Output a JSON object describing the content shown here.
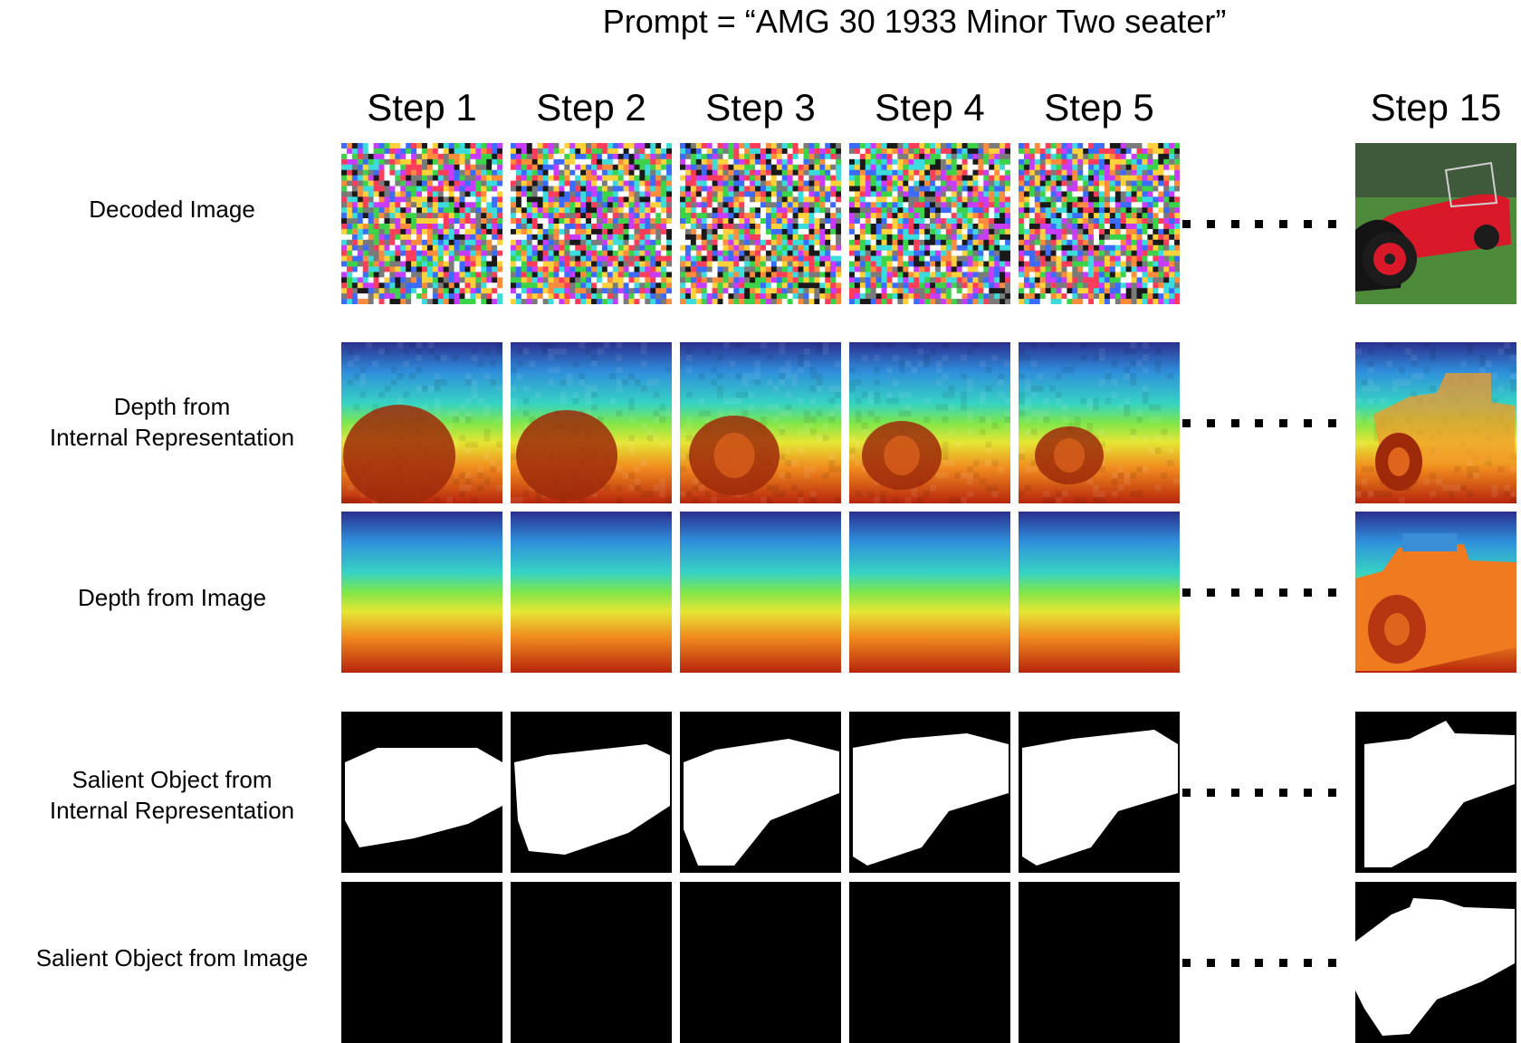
{
  "prompt": "Prompt = “AMG 30 1933 Minor Two seater”",
  "steps": [
    "Step 1",
    "Step 2",
    "Step 3",
    "Step 4",
    "Step 5",
    "Step 15"
  ],
  "rows": [
    {
      "label": [
        "Decoded Image"
      ]
    },
    {
      "label": [
        "Depth from",
        "Internal Representation"
      ]
    },
    {
      "label": [
        "Depth from Image"
      ]
    },
    {
      "label": [
        "Salient Object from",
        "Internal Representation"
      ]
    },
    {
      "label": [
        "Salient Object from Image"
      ]
    }
  ],
  "colors": {
    "depth_far": "#2b2f8e",
    "depth_mid": "#7ee64a",
    "depth_near": "#b7250c",
    "mask_fg": "#ffffff",
    "mask_bg": "#000000",
    "car_red": "#d9192a",
    "grass": "#4d8a3a"
  }
}
